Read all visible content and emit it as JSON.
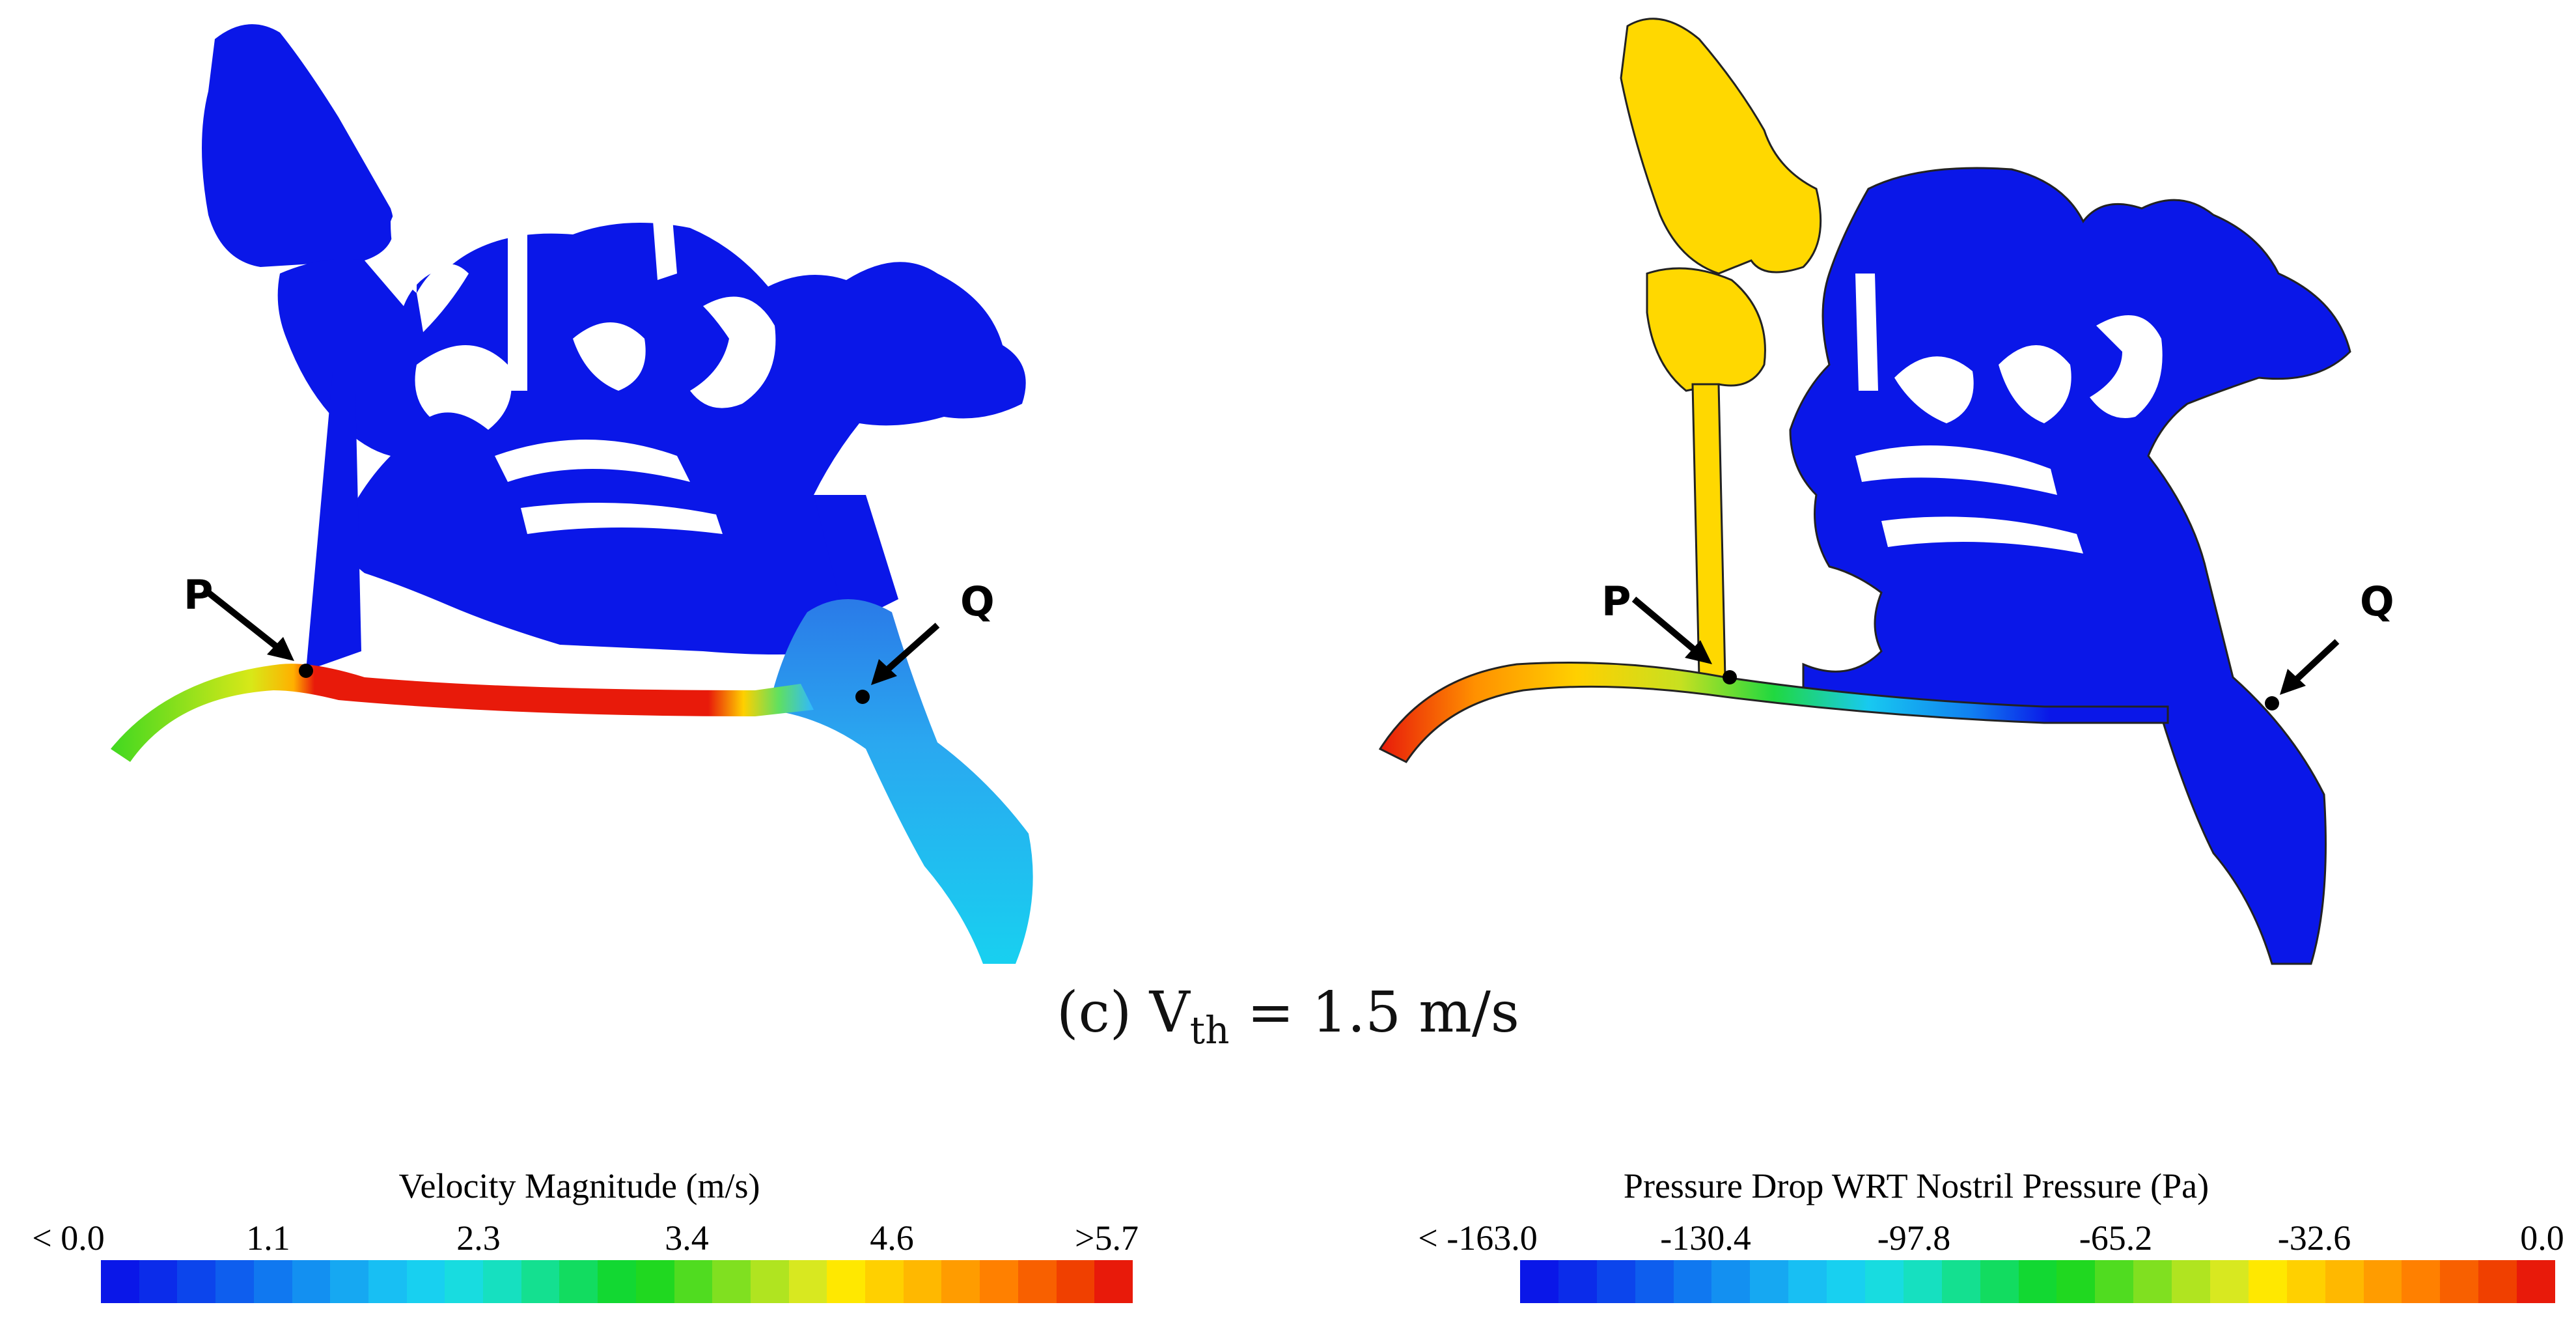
{
  "left_panel": {
    "point_p": "P",
    "point_q": "Q"
  },
  "right_panel": {
    "point_p": "P",
    "point_q": "Q"
  },
  "caption": {
    "prefix": "(c) V",
    "subscript": "th",
    "suffix": " = 1.5 m/s"
  },
  "legend_left": {
    "title": "Velocity Magnitude (m/s)",
    "ticks": [
      "<  0.0",
      "1.1",
      "2.3",
      "3.4",
      "4.6",
      ">5.7"
    ]
  },
  "legend_right": {
    "title": "Pressure Drop WRT Nostril Pressure (Pa)",
    "ticks": [
      "< -163.0",
      "-130.4",
      "-97.8",
      "-65.2",
      "-32.6",
      "0.0"
    ]
  },
  "colors": {
    "blue": "#0a17e8",
    "cyan": "#18c9f0",
    "green": "#12d832",
    "yellow": "#ffd800",
    "red": "#e81a0a"
  }
}
